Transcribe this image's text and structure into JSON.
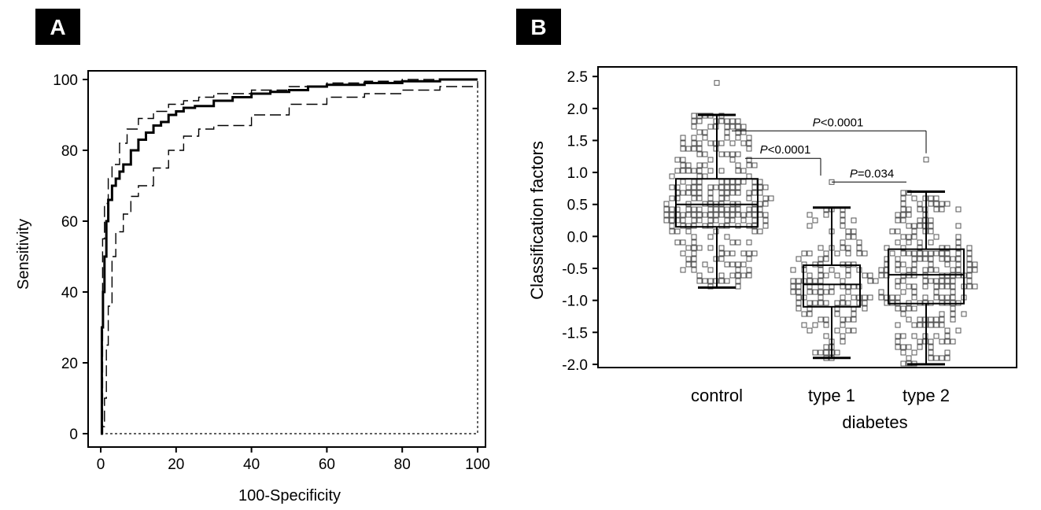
{
  "panels": [
    {
      "letter": "A"
    },
    {
      "letter": "B"
    }
  ],
  "chart_data": [
    {
      "type": "line",
      "panel": "A",
      "xlabel": "100-Specificity",
      "ylabel": "Sensitivity",
      "xlim": [
        0,
        100
      ],
      "ylim": [
        0,
        100
      ],
      "xticks": [
        "0",
        "20",
        "40",
        "60",
        "80",
        "100"
      ],
      "yticks": [
        "0",
        "20",
        "40",
        "60",
        "80",
        "100"
      ],
      "series": [
        {
          "style": "thick-solid",
          "x": [
            0,
            0.3,
            0.6,
            1,
            1.5,
            2,
            3,
            4,
            5,
            6,
            8,
            10,
            12,
            14,
            16,
            18,
            20,
            22,
            25,
            30,
            35,
            40,
            45,
            50,
            55,
            60,
            70,
            80,
            90,
            100
          ],
          "y": [
            0,
            30,
            40,
            50,
            60,
            66,
            70,
            72,
            74,
            76,
            80,
            83,
            85,
            87,
            88,
            90,
            91,
            92,
            92.5,
            94,
            95,
            96,
            96.5,
            97,
            98,
            98.5,
            99,
            99.5,
            100,
            100
          ]
        },
        {
          "style": "dashed-upper",
          "x": [
            0,
            0.5,
            1,
            2,
            3,
            5,
            7,
            10,
            14,
            18,
            22,
            26,
            30,
            40,
            50,
            60,
            70,
            80,
            90,
            100
          ],
          "y": [
            0,
            55,
            65,
            72,
            76,
            82,
            86,
            89,
            91,
            93,
            94,
            95,
            96,
            97,
            98,
            99,
            99.5,
            100,
            100,
            100
          ]
        },
        {
          "style": "dashed-lower",
          "x": [
            0,
            0.5,
            1,
            1.5,
            2,
            3,
            4,
            6,
            8,
            10,
            14,
            18,
            22,
            26,
            30,
            40,
            50,
            60,
            70,
            80,
            90,
            100
          ],
          "y": [
            0,
            2,
            10,
            25,
            36,
            50,
            57,
            62,
            67,
            70,
            75,
            80,
            84,
            86,
            87,
            90,
            93,
            95,
            96,
            97,
            98,
            99
          ]
        },
        {
          "style": "dotted-diagonal",
          "x": [
            0,
            100
          ],
          "y": [
            0,
            100
          ]
        }
      ]
    },
    {
      "type": "scatter",
      "panel": "B",
      "xlabel": "diabetes",
      "ylabel": "Classification factors",
      "ylim": [
        -2.05,
        2.65
      ],
      "yticks": [
        "2.5",
        "2.0",
        "1.5",
        "1.0",
        "0.5",
        "0.0",
        "-0.5",
        "-1.0",
        "-1.5",
        "-2.0"
      ],
      "categories": [
        "control",
        "type 1",
        "type 2"
      ],
      "boxes": [
        {
          "category": "control",
          "whisker_low": -0.8,
          "q1": 0.15,
          "median": 0.5,
          "q3": 0.9,
          "whisker_high": 1.9,
          "outliers": [
            2.4
          ]
        },
        {
          "category": "type 1",
          "whisker_low": -1.9,
          "q1": -1.1,
          "median": -0.75,
          "q3": -0.45,
          "whisker_high": 0.45,
          "outliers": [
            0.85
          ]
        },
        {
          "category": "type 2",
          "whisker_low": -2.0,
          "q1": -1.05,
          "median": -0.6,
          "q3": -0.2,
          "whisker_high": 0.7,
          "outliers": [
            1.2
          ]
        }
      ],
      "annotations": [
        {
          "between": [
            "control",
            "type 2"
          ],
          "italic": "P",
          "rest": "<0.0001"
        },
        {
          "between": [
            "control",
            "type 1"
          ],
          "italic": "P",
          "rest": "<0.0001"
        },
        {
          "between": [
            "type 1",
            "type 2"
          ],
          "italic": "P",
          "rest": "=0.034"
        }
      ]
    }
  ]
}
